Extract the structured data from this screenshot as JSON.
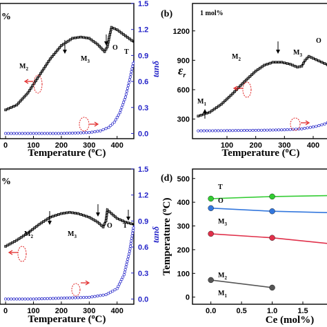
{
  "chart_data": [
    {
      "panel": "a",
      "type": "line",
      "corner_label": "%",
      "xlabel": "Temperature (°C)",
      "y2label": "tanδ",
      "x_ticks": [
        "0",
        "100",
        "200",
        "300",
        "400"
      ],
      "y2_ticks": [
        "0.0",
        "0.3",
        "0.6",
        "0.9",
        "1.2",
        "1.5"
      ],
      "xlim": [
        -20,
        460
      ],
      "y2lim": [
        -0.06,
        1.5
      ],
      "annotations": [
        "M₂",
        "M₃",
        "O",
        "T"
      ],
      "series": [
        {
          "role": "permittivity",
          "color": "#000000",
          "x": [
            0,
            40,
            80,
            120,
            160,
            200,
            240,
            270,
            300,
            330,
            355,
            365,
            372,
            380,
            400,
            430,
            460
          ],
          "y": [
            0.18,
            0.22,
            0.32,
            0.46,
            0.6,
            0.71,
            0.77,
            0.78,
            0.77,
            0.72,
            0.66,
            0.7,
            0.78,
            0.86,
            0.84,
            0.79,
            0.74
          ]
        },
        {
          "role": "tanδ",
          "color": "#2323c8",
          "x": [
            0,
            100,
            200,
            300,
            340,
            370,
            390,
            410,
            430,
            445,
            460
          ],
          "y": [
            0.0,
            0.0,
            0.0,
            0.01,
            0.03,
            0.07,
            0.13,
            0.24,
            0.42,
            0.62,
            0.84
          ]
        }
      ]
    },
    {
      "panel": "b",
      "type": "line",
      "corner_label": "1 mol%",
      "xlabel": "Temperature (°C)",
      "ylabel": "εr",
      "x_ticks": [
        "100",
        "200",
        "300",
        "400"
      ],
      "y_ticks": [
        "300",
        "600",
        "900",
        "1200"
      ],
      "xlim": [
        -20,
        460
      ],
      "ylim": [
        100,
        1480
      ],
      "annotations": [
        "M₁",
        "M₂",
        "M₃",
        "O"
      ],
      "series": [
        {
          "role": "permittivity",
          "color": "#000000",
          "x": [
            0,
            40,
            80,
            120,
            160,
            200,
            230,
            260,
            290,
            320,
            345,
            360,
            372,
            385,
            400,
            430,
            460
          ],
          "y": [
            330,
            370,
            450,
            560,
            680,
            790,
            850,
            880,
            880,
            860,
            830,
            840,
            900,
            940,
            920,
            880,
            840
          ]
        },
        {
          "role": "tanδ",
          "color": "#2323c8",
          "x": [
            0,
            100,
            200,
            300,
            360,
            410,
            440,
            460
          ],
          "y": [
            180,
            182,
            185,
            190,
            200,
            225,
            250,
            280
          ]
        }
      ]
    },
    {
      "panel": "c",
      "type": "line",
      "corner_label": "%",
      "xlabel": "Temperature (°C)",
      "y2label": "tanδ",
      "x_ticks": [
        "0",
        "100",
        "200",
        "300",
        "400"
      ],
      "y2_ticks": [
        "0.0",
        "0.3",
        "0.6",
        "0.9",
        "1.2",
        "1.5"
      ],
      "xlim": [
        -20,
        460
      ],
      "y2lim": [
        -0.06,
        1.5
      ],
      "annotations": [
        "M₂",
        "M₃",
        "O",
        "T"
      ],
      "series": [
        {
          "role": "permittivity",
          "color": "#000000",
          "x": [
            0,
            40,
            80,
            120,
            160,
            200,
            230,
            260,
            300,
            330,
            350,
            360,
            365,
            380,
            400,
            430,
            460
          ],
          "y": [
            0.42,
            0.47,
            0.53,
            0.6,
            0.66,
            0.69,
            0.7,
            0.69,
            0.66,
            0.62,
            0.58,
            0.63,
            0.72,
            0.69,
            0.65,
            0.62,
            0.6
          ]
        },
        {
          "role": "tanδ",
          "color": "#2323c8",
          "x": [
            0,
            100,
            200,
            300,
            360,
            400,
            425,
            445,
            460
          ],
          "y": [
            0.0,
            0.0,
            0.01,
            0.02,
            0.05,
            0.12,
            0.28,
            0.55,
            0.85
          ]
        }
      ]
    },
    {
      "panel": "d",
      "type": "line",
      "xlabel": "Ce (mol%)",
      "ylabel": "Temperature (°C)",
      "x_ticks": [
        "0.0",
        "0.5",
        "1.0",
        "1.5"
      ],
      "y_ticks": [
        "0",
        "100",
        "200",
        "300",
        "400",
        "500"
      ],
      "xlim": [
        -0.3,
        1.95
      ],
      "ylim": [
        -30,
        540
      ],
      "series": [
        {
          "name": "T",
          "color": "#33cc33",
          "x": [
            0.0,
            1.0,
            2.0
          ],
          "y": [
            415,
            424,
            428
          ]
        },
        {
          "name": "O",
          "color": "#3377dd",
          "x": [
            0.0,
            1.0,
            2.0
          ],
          "y": [
            375,
            362,
            356
          ]
        },
        {
          "name": "M₃",
          "color": "#e0304a",
          "x": [
            0.0,
            1.0,
            2.0
          ],
          "y": [
            267,
            250,
            225
          ]
        },
        {
          "name": "M₂",
          "color": "#555555",
          "x": [
            0.0,
            1.0
          ],
          "y": [
            72,
            40
          ]
        }
      ],
      "extra_labels": [
        "M₁"
      ]
    }
  ]
}
